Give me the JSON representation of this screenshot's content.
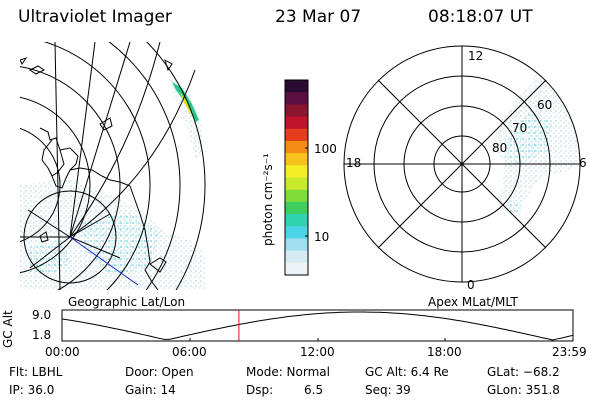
{
  "header": {
    "title": "Ultraviolet Imager",
    "date": "23 Mar 07",
    "time": "08:18:07 UT"
  },
  "geo_panel": {
    "label": "Geographic Lat/Lon"
  },
  "colorbar": {
    "unit_label": "photon cm⁻²s⁻¹",
    "ticks": [
      "100",
      "10"
    ],
    "scale": "log",
    "colors": [
      "#2a0b33",
      "#5a1042",
      "#8a1530",
      "#c0142a",
      "#e53d1e",
      "#f38c12",
      "#f7c21b",
      "#f4ef24",
      "#c9ea2b",
      "#7fdc3a",
      "#3fcf5f",
      "#2fd3b0",
      "#4bd3e6",
      "#9fdff0",
      "#d6ecf2",
      "#ebf3f5"
    ]
  },
  "polar_panel": {
    "label": "Apex MLat/MLT",
    "mlt_labels": {
      "top": "12",
      "bottom": "0",
      "left": "18",
      "right": "6"
    },
    "lat_labels": [
      "60",
      "70",
      "80"
    ]
  },
  "altitude_plot": {
    "ylabel": "GC Alt",
    "yticks": [
      "9.0",
      "1.8"
    ],
    "xticks": [
      "00:00",
      "06:00",
      "12:00",
      "18:00",
      "23:59"
    ],
    "marker_time": "08:18:07",
    "marker_color": "#e01010"
  },
  "info": {
    "filter": "Flt: LBHL",
    "door": "Door: Open",
    "mode": "Mode: Normal",
    "gc_alt": "GC Alt: 6.4 Re",
    "glat": "GLat: −68.2",
    "ip": "IP: 36.0",
    "gain": "Gain: 14",
    "dsp_label": "Dsp:",
    "dsp_value": "6.5",
    "seq": "Seq: 39",
    "glon": "GLon: 351.8"
  }
}
